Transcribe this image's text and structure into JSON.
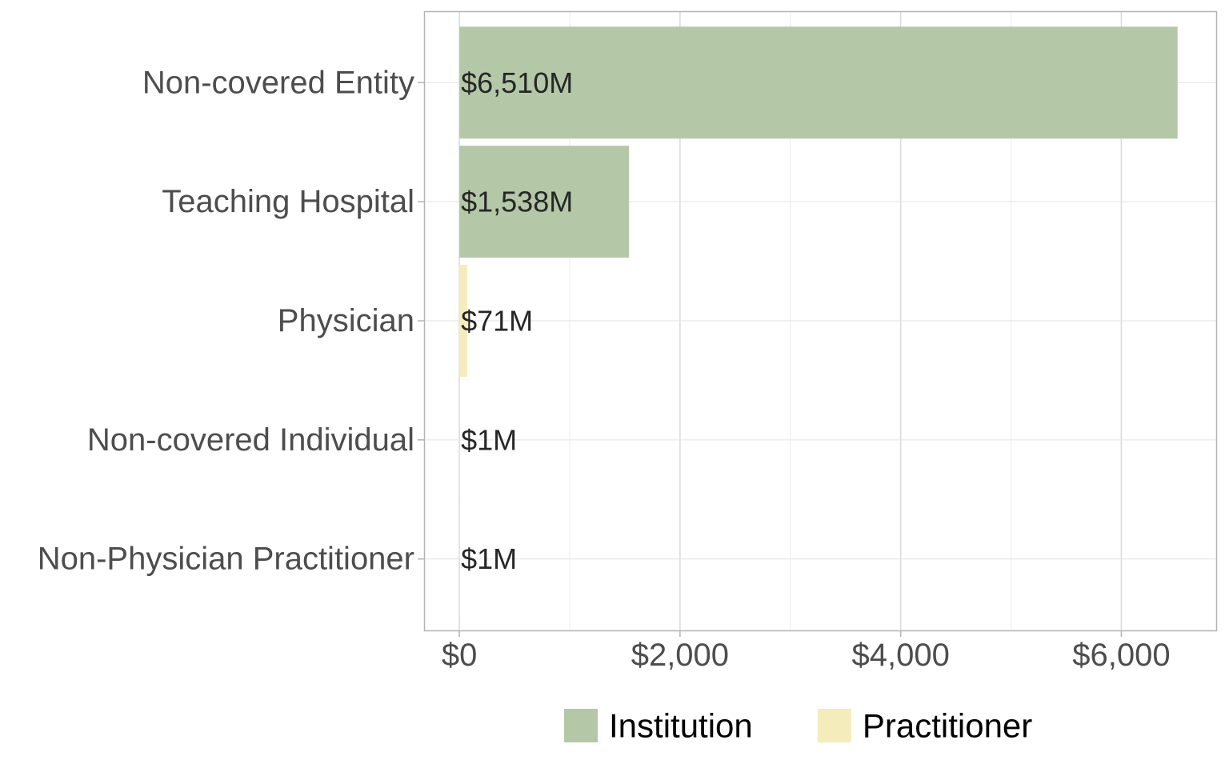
{
  "chart_data": {
    "type": "bar",
    "orientation": "horizontal",
    "categories": [
      "Non-covered Entity",
      "Teaching Hospital",
      "Physician",
      "Non-covered Individual",
      "Non-Physician Practitioner"
    ],
    "values": [
      6510,
      1538,
      71,
      1,
      1
    ],
    "value_labels": [
      "$6,510M",
      "$1,538M",
      "$71M",
      "$1M",
      "$1M"
    ],
    "groups": [
      "Institution",
      "Institution",
      "Practitioner",
      "Practitioner",
      "Practitioner"
    ],
    "xlim": [
      -320,
      6860
    ],
    "x_ticks": [
      0,
      2000,
      4000,
      6000
    ],
    "x_tick_labels": [
      "$0",
      "$2,000",
      "$4,000",
      "$6,000"
    ],
    "grid": true,
    "legend": {
      "position": "bottom",
      "entries": [
        {
          "name": "Institution",
          "color": "#b4c8a8"
        },
        {
          "name": "Practitioner",
          "color": "#f5ecbb"
        }
      ]
    },
    "title": "",
    "xlabel": "",
    "ylabel": ""
  }
}
